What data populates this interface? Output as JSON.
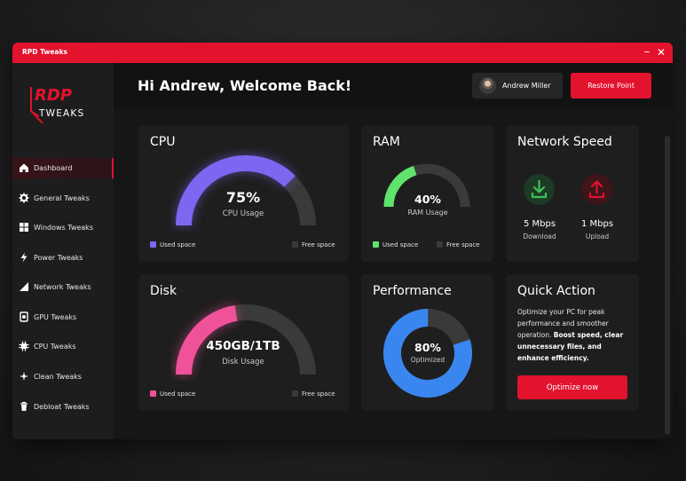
{
  "window": {
    "title": "RPD Tweaks",
    "minimize": "–",
    "close": "✕"
  },
  "logo": {
    "line1": "RDP",
    "line2": "TWEAKS"
  },
  "sidebar": {
    "items": [
      {
        "label": "Dashboard",
        "icon": "home-icon",
        "active": true
      },
      {
        "label": "General Tweaks",
        "icon": "gear-icon"
      },
      {
        "label": "Windows Tweaks",
        "icon": "windows-icon"
      },
      {
        "label": "Power Tweaks",
        "icon": "lightning-icon"
      },
      {
        "label": "Network Tweaks",
        "icon": "signal-icon"
      },
      {
        "label": "GPU Tweaks",
        "icon": "gpu-icon"
      },
      {
        "label": "CPU Tweaks",
        "icon": "cpu-icon"
      },
      {
        "label": "Clean Tweaks",
        "icon": "sparkle-icon"
      },
      {
        "label": "Debloat Tweaks",
        "icon": "trash-icon"
      }
    ]
  },
  "header": {
    "greeting": "Hi Andrew, Welcome Back!",
    "user_name": "Andrew Miller",
    "restore_label": "Restore Point"
  },
  "cpu": {
    "title": "CPU",
    "value": "75%",
    "label": "CPU Usage",
    "fraction": 0.75,
    "color": "#7d66f0",
    "used_label": "Used space",
    "free_label": "Free space"
  },
  "ram": {
    "title": "RAM",
    "value": "40%",
    "label": "RAM Usage",
    "fraction": 0.4,
    "color": "#5fe36b",
    "used_label": "Used space",
    "free_label": "Free space"
  },
  "disk": {
    "title": "Disk",
    "value": "450GB/1TB",
    "label": "Disk Usage",
    "fraction": 0.45,
    "color": "#f0529a",
    "used_label": "Used space",
    "free_label": "Free space"
  },
  "network": {
    "title": "Network Speed",
    "download_value": "5 Mbps",
    "download_label": "Download",
    "upload_value": "1 Mbps",
    "upload_label": "Upload",
    "download_color": "#3cc25a",
    "upload_color": "#e3122d"
  },
  "performance": {
    "title": "Performance",
    "value": "80%",
    "label": "Optimized",
    "fraction": 0.8,
    "color": "#3a86f0"
  },
  "quick_action": {
    "title": "Quick Action",
    "text_plain": "Optimize your PC for peak performance and smoother operation. ",
    "text_bold": "Boost speed, clear unnecessary files, and enhance efficiency.",
    "button_label": "Optimize now"
  },
  "colors": {
    "accent": "#e3122d",
    "free": "#3a3a3a"
  }
}
